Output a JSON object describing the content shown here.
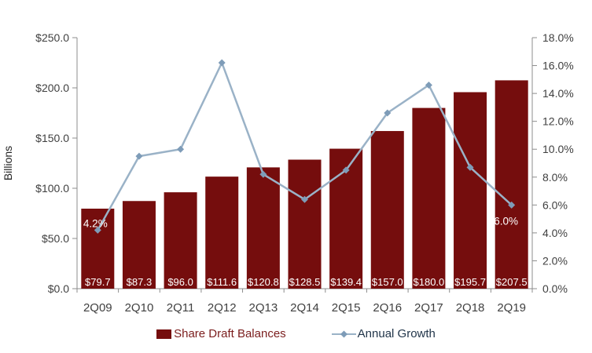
{
  "chart_data": {
    "type": "combo-bar-line",
    "title": "",
    "categories": [
      "2Q09",
      "2Q10",
      "2Q11",
      "2Q12",
      "2Q13",
      "2Q14",
      "2Q15",
      "2Q16",
      "2Q17",
      "2Q18",
      "2Q19"
    ],
    "series": [
      {
        "name": "Share Draft Balances",
        "type": "bar",
        "axis": "left",
        "values": [
          79.7,
          87.3,
          96.0,
          111.6,
          120.8,
          128.5,
          139.4,
          157.0,
          180.0,
          195.7,
          207.5
        ],
        "data_labels": [
          "$79.7",
          "$87.3",
          "$96.0",
          "$111.6",
          "$120.8",
          "$128.5",
          "$139.4",
          "$157.0",
          "$180.0",
          "$195.7",
          "$207.5"
        ],
        "color": "#750D0D",
        "data_label_color": "#FFFFFF"
      },
      {
        "name": "Annual Growth",
        "type": "line",
        "axis": "right",
        "values": [
          4.2,
          9.5,
          10.0,
          16.2,
          8.2,
          6.4,
          8.5,
          12.6,
          14.6,
          8.7,
          6.0
        ],
        "color": "#9AB2C7",
        "marker": "diamond",
        "marker_color": "#7E9CB8"
      }
    ],
    "left_axis": {
      "label": "Billions",
      "min": 0,
      "max": 250,
      "step": 50,
      "tick_labels": [
        "$0.0",
        "$50.0",
        "$100.0",
        "$150.0",
        "$200.0",
        "$250.0"
      ]
    },
    "right_axis": {
      "min": 0,
      "max": 18,
      "step": 2,
      "tick_labels": [
        "0.0%",
        "2.0%",
        "4.0%",
        "6.0%",
        "8.0%",
        "10.0%",
        "12.0%",
        "14.0%",
        "16.0%",
        "18.0%"
      ]
    },
    "annotations": [
      {
        "text": "4.2%",
        "category_index": 0,
        "placement": "above-marker",
        "color": "#FFFFFF"
      },
      {
        "text": "6.0%",
        "category_index": 10,
        "placement": "below-marker",
        "color": "#FFFFFF"
      }
    ],
    "legend": [
      {
        "label": "Share Draft Balances",
        "marker": "square",
        "text_color": "#7B1D1D"
      },
      {
        "label": "Annual Growth",
        "marker": "line-diamond",
        "text_color": "#1F3348"
      }
    ],
    "style": {
      "axis_text_color": "#404040",
      "axis_line_color": "#8C8C8C",
      "axis_label_color": "#262626"
    },
    "grid": false,
    "legend_position": "bottom"
  }
}
